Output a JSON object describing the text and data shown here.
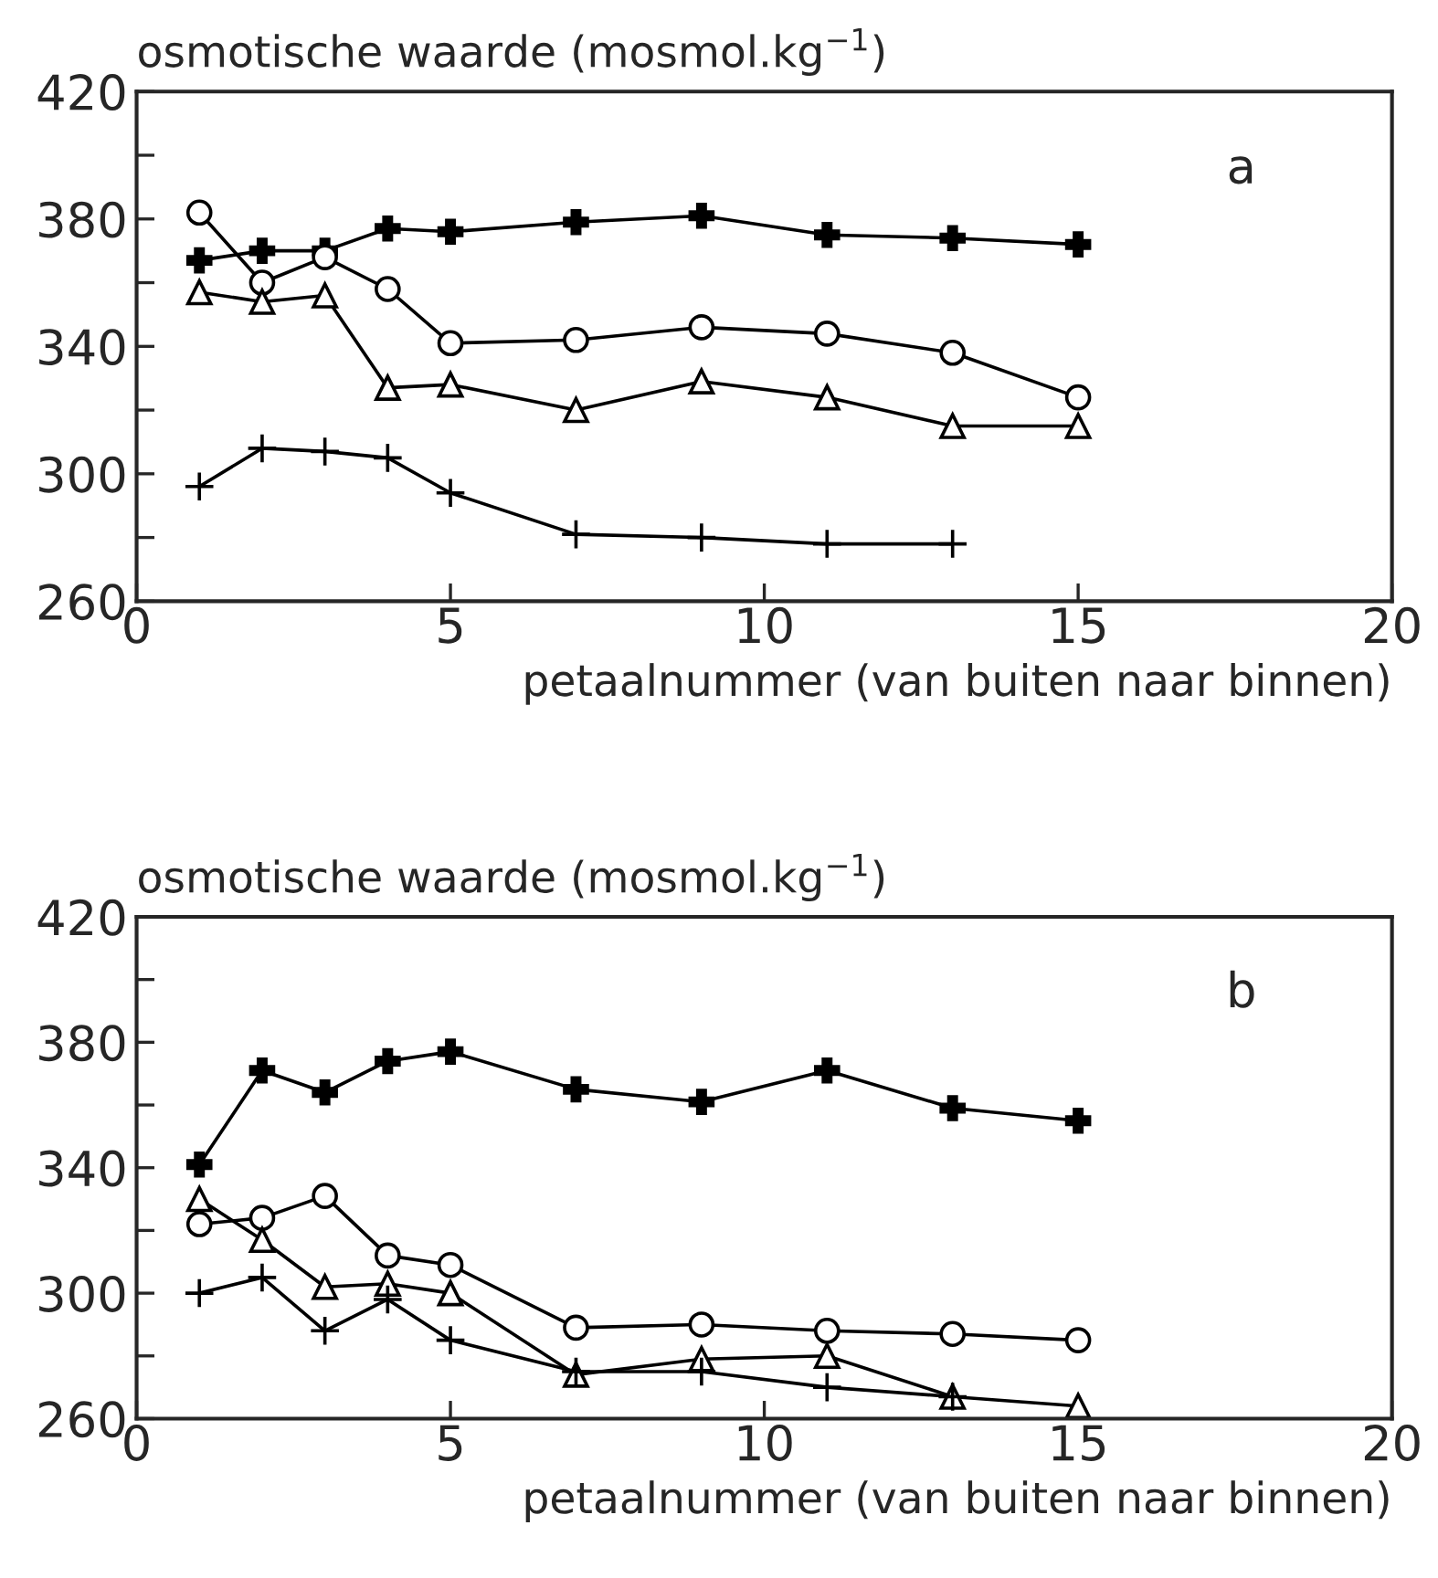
{
  "chart_data": [
    {
      "type": "line",
      "ylabel": "osmotische waarde (mosmol.kg$^{−1}$)",
      "xlabel": "petaalnummer (van buiten naar binnen)",
      "annotations": [
        "a"
      ],
      "xlim": [
        0,
        20
      ],
      "xticks": [
        0,
        5,
        10,
        15,
        20
      ],
      "ylim": [
        260,
        420
      ],
      "yticks": [
        260,
        {
          "value": 280,
          "label": null
        },
        300,
        {
          "value": 320,
          "label": null
        },
        340,
        {
          "value": 360,
          "label": null
        },
        380,
        {
          "value": 400,
          "label": null
        },
        420
      ],
      "grid": false,
      "legend": false,
      "series": [
        {
          "color": "#000000",
          "marker": "cross_bold",
          "x": [
            1,
            2,
            3,
            4,
            5,
            7,
            9,
            11,
            13,
            15
          ],
          "values": [
            367,
            370,
            370,
            377,
            376,
            379,
            381,
            375,
            374,
            372
          ]
        },
        {
          "color": "#000000",
          "marker": "circle",
          "x": [
            1,
            2,
            3,
            4,
            5,
            7,
            9,
            11,
            13,
            15
          ],
          "values": [
            382,
            360,
            368,
            358,
            341,
            342,
            346,
            344,
            338,
            324
          ]
        },
        {
          "color": "#000000",
          "marker": "triangle",
          "x": [
            1,
            2,
            3,
            4,
            5,
            7,
            9,
            11,
            13,
            15
          ],
          "values": [
            357,
            354,
            356,
            327,
            328,
            320,
            329,
            324,
            315,
            315
          ]
        },
        {
          "color": "#000000",
          "marker": "cross",
          "x": [
            1,
            2,
            3,
            4,
            5,
            7,
            9,
            11,
            13
          ],
          "values": [
            296,
            308,
            307,
            305,
            294,
            281,
            280,
            278,
            278
          ]
        }
      ]
    },
    {
      "type": "line",
      "ylabel": "osmotische waarde (mosmol.kg$^{−1}$)",
      "xlabel": "petaalnummer (van buiten naar binnen)",
      "annotations": [
        "b"
      ],
      "xlim": [
        0,
        20
      ],
      "xticks": [
        0,
        5,
        10,
        15,
        20
      ],
      "ylim": [
        260,
        420
      ],
      "yticks": [
        260,
        {
          "value": 280,
          "label": null
        },
        300,
        {
          "value": 320,
          "label": null
        },
        340,
        {
          "value": 360,
          "label": null
        },
        380,
        {
          "value": 400,
          "label": null
        },
        420
      ],
      "grid": false,
      "legend": false,
      "series": [
        {
          "color": "#000000",
          "marker": "cross_bold",
          "x": [
            1,
            2,
            3,
            4,
            5,
            7,
            9,
            11,
            13,
            15
          ],
          "values": [
            341,
            371,
            364,
            374,
            377,
            365,
            361,
            371,
            359,
            355
          ]
        },
        {
          "color": "#000000",
          "marker": "circle",
          "x": [
            1,
            2,
            3,
            4,
            5,
            7,
            9,
            11,
            13,
            15
          ],
          "values": [
            322,
            324,
            331,
            312,
            309,
            289,
            290,
            288,
            287,
            285
          ]
        },
        {
          "color": "#000000",
          "marker": "triangle",
          "x": [
            1,
            2,
            3,
            4,
            5,
            7,
            9,
            11,
            13,
            15
          ],
          "values": [
            330,
            317,
            302,
            303,
            300,
            274,
            279,
            280,
            267,
            264
          ]
        },
        {
          "color": "#000000",
          "marker": "cross",
          "x": [
            1,
            2,
            3,
            4,
            5,
            7,
            9,
            11,
            13
          ],
          "values": [
            300,
            305,
            288,
            298,
            285,
            275,
            275,
            270,
            267
          ]
        }
      ]
    }
  ]
}
